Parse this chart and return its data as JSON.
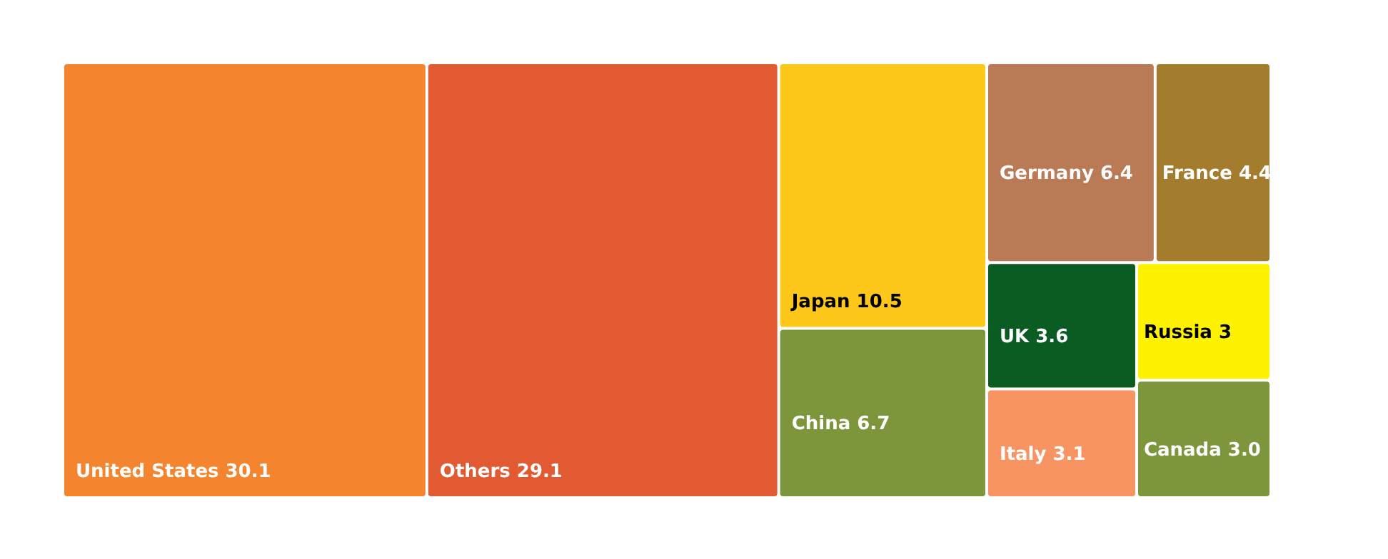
{
  "chart_data": {
    "type": "other",
    "categories": [
      "United States",
      "Others",
      "Japan",
      "China",
      "Germany",
      "France",
      "UK",
      "Italy",
      "Russia",
      "Canada"
    ],
    "values": [
      30.1,
      29.1,
      10.5,
      6.7,
      6.4,
      4.4,
      3.6,
      3.1,
      3,
      3.0
    ],
    "value_labels": [
      "30.1",
      "29.1",
      "10.5",
      "6.7",
      "6.4",
      "4.4",
      "3.6",
      "3.1",
      "3",
      "3.0"
    ],
    "colors": [
      "#f5842e",
      "#e25a32",
      "#fec81b",
      "#7e963b",
      "#b97a55",
      "#a47c2d",
      "#0a5c23",
      "#f79462",
      "#fff200",
      "#7e963b"
    ]
  }
}
